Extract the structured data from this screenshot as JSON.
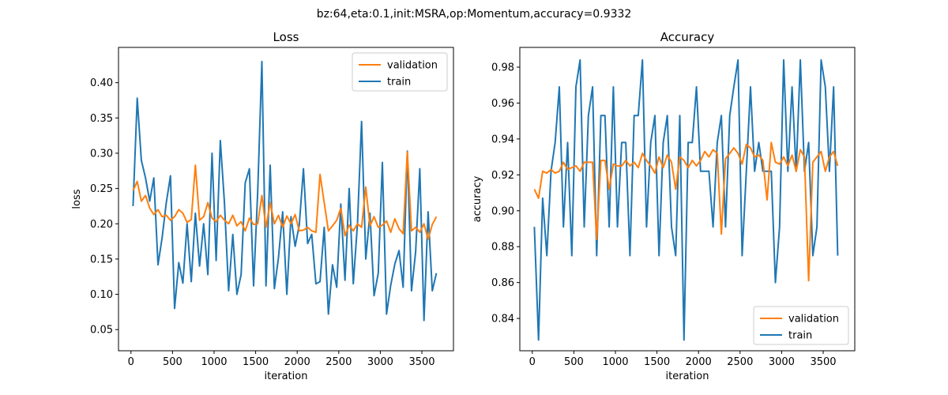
{
  "figure_title": "bz:64,eta:0.1,init:MSRA,op:Momentum,accuracy=0.9332",
  "colors": {
    "train": "#1f77b4",
    "validation": "#ff7f0e",
    "axis": "#000000"
  },
  "chart_data": [
    {
      "type": "line",
      "title": "Loss",
      "xlabel": "iteration",
      "ylabel": "loss",
      "xlim": [
        -150,
        3880
      ],
      "ylim": [
        0.02,
        0.45
      ],
      "xticks": [
        0,
        500,
        1000,
        1500,
        2000,
        2500,
        3000,
        3500
      ],
      "yticks": [
        0.05,
        0.1,
        0.15,
        0.2,
        0.25,
        0.3,
        0.35,
        0.4
      ],
      "ytick_labels": [
        "0.05",
        "0.10",
        "0.15",
        "0.20",
        "0.25",
        "0.30",
        "0.35",
        "0.40"
      ],
      "legend_position": "top-right",
      "x": [
        25,
        75,
        125,
        175,
        225,
        275,
        325,
        375,
        425,
        475,
        525,
        575,
        625,
        675,
        725,
        775,
        825,
        875,
        925,
        975,
        1025,
        1075,
        1125,
        1175,
        1225,
        1275,
        1325,
        1375,
        1425,
        1475,
        1525,
        1575,
        1625,
        1675,
        1725,
        1775,
        1825,
        1875,
        1925,
        1975,
        2025,
        2075,
        2125,
        2175,
        2225,
        2275,
        2325,
        2375,
        2425,
        2475,
        2525,
        2575,
        2625,
        2675,
        2725,
        2775,
        2825,
        2875,
        2925,
        2975,
        3025,
        3075,
        3125,
        3175,
        3225,
        3275,
        3325,
        3375,
        3425,
        3475,
        3525,
        3575,
        3625,
        3675
      ],
      "series": [
        {
          "name": "validation",
          "values": [
            0.247,
            0.26,
            0.232,
            0.24,
            0.222,
            0.213,
            0.22,
            0.21,
            0.212,
            0.205,
            0.21,
            0.22,
            0.215,
            0.202,
            0.206,
            0.283,
            0.205,
            0.21,
            0.23,
            0.208,
            0.203,
            0.212,
            0.205,
            0.2,
            0.212,
            0.197,
            0.203,
            0.19,
            0.208,
            0.199,
            0.2,
            0.24,
            0.195,
            0.23,
            0.2,
            0.212,
            0.195,
            0.211,
            0.2,
            0.213,
            0.19,
            0.191,
            0.195,
            0.19,
            0.188,
            0.27,
            0.23,
            0.19,
            0.197,
            0.205,
            0.222,
            0.183,
            0.198,
            0.19,
            0.2,
            0.195,
            0.252,
            0.197,
            0.21,
            0.195,
            0.198,
            0.204,
            0.188,
            0.207,
            0.193,
            0.186,
            0.302,
            0.19,
            0.195,
            0.188,
            0.2,
            0.178,
            0.199,
            0.21
          ]
        },
        {
          "name": "train",
          "values": [
            0.225,
            0.378,
            0.29,
            0.265,
            0.232,
            0.265,
            0.142,
            0.18,
            0.23,
            0.268,
            0.08,
            0.145,
            0.116,
            0.2,
            0.118,
            0.215,
            0.14,
            0.2,
            0.128,
            0.3,
            0.148,
            0.318,
            0.23,
            0.105,
            0.185,
            0.1,
            0.128,
            0.258,
            0.278,
            0.112,
            0.245,
            0.43,
            0.112,
            0.283,
            0.108,
            0.152,
            0.217,
            0.1,
            0.21,
            0.168,
            0.198,
            0.278,
            0.172,
            0.185,
            0.115,
            0.118,
            0.195,
            0.072,
            0.142,
            0.11,
            0.228,
            0.12,
            0.25,
            0.115,
            0.2,
            0.345,
            0.15,
            0.215,
            0.098,
            0.13,
            0.287,
            0.072,
            0.113,
            0.143,
            0.162,
            0.11,
            0.303,
            0.105,
            0.16,
            0.278,
            0.063,
            0.217,
            0.105,
            0.13
          ]
        }
      ]
    },
    {
      "type": "line",
      "title": "Accuracy",
      "xlabel": "iteration",
      "ylabel": "accuracy",
      "xlim": [
        -150,
        3880
      ],
      "ylim": [
        0.822,
        0.991
      ],
      "xticks": [
        0,
        500,
        1000,
        1500,
        2000,
        2500,
        3000,
        3500
      ],
      "yticks": [
        0.84,
        0.86,
        0.88,
        0.9,
        0.92,
        0.94,
        0.96,
        0.98
      ],
      "ytick_labels": [
        "0.84",
        "0.86",
        "0.88",
        "0.90",
        "0.92",
        "0.94",
        "0.96",
        "0.98"
      ],
      "legend_position": "bottom-right",
      "x": [
        25,
        75,
        125,
        175,
        225,
        275,
        325,
        375,
        425,
        475,
        525,
        575,
        625,
        675,
        725,
        775,
        825,
        875,
        925,
        975,
        1025,
        1075,
        1125,
        1175,
        1225,
        1275,
        1325,
        1375,
        1425,
        1475,
        1525,
        1575,
        1625,
        1675,
        1725,
        1775,
        1825,
        1875,
        1925,
        1975,
        2025,
        2075,
        2125,
        2175,
        2225,
        2275,
        2325,
        2375,
        2425,
        2475,
        2525,
        2575,
        2625,
        2675,
        2725,
        2775,
        2825,
        2875,
        2925,
        2975,
        3025,
        3075,
        3125,
        3175,
        3225,
        3275,
        3325,
        3375,
        3425,
        3475,
        3525,
        3575,
        3625,
        3675
      ],
      "series": [
        {
          "name": "validation",
          "values": [
            0.912,
            0.907,
            0.922,
            0.921,
            0.923,
            0.921,
            0.922,
            0.927,
            0.923,
            0.924,
            0.925,
            0.922,
            0.927,
            0.927,
            0.927,
            0.884,
            0.928,
            0.928,
            0.912,
            0.926,
            0.925,
            0.925,
            0.928,
            0.925,
            0.927,
            0.924,
            0.932,
            0.928,
            0.925,
            0.921,
            0.93,
            0.924,
            0.931,
            0.927,
            0.912,
            0.93,
            0.928,
            0.924,
            0.928,
            0.925,
            0.928,
            0.933,
            0.93,
            0.934,
            0.932,
            0.887,
            0.929,
            0.932,
            0.935,
            0.932,
            0.926,
            0.937,
            0.935,
            0.93,
            0.931,
            0.928,
            0.906,
            0.938,
            0.927,
            0.926,
            0.93,
            0.925,
            0.931,
            0.922,
            0.934,
            0.93,
            0.861,
            0.927,
            0.93,
            0.933,
            0.922,
            0.93,
            0.933,
            0.925
          ]
        },
        {
          "name": "train",
          "values": [
            0.891,
            0.828,
            0.907,
            0.875,
            0.922,
            0.938,
            0.969,
            0.891,
            0.938,
            0.875,
            0.969,
            0.984,
            0.891,
            0.953,
            0.969,
            0.875,
            0.953,
            0.953,
            0.891,
            0.969,
            0.891,
            0.938,
            0.938,
            0.875,
            0.953,
            0.953,
            0.984,
            0.891,
            0.938,
            0.953,
            0.875,
            0.938,
            0.953,
            0.891,
            0.875,
            0.953,
            0.828,
            0.938,
            0.938,
            0.969,
            0.922,
            0.922,
            0.922,
            0.891,
            0.938,
            0.953,
            0.891,
            0.953,
            0.969,
            0.984,
            0.875,
            0.922,
            0.969,
            0.922,
            0.938,
            0.922,
            0.922,
            0.922,
            0.86,
            0.891,
            0.984,
            0.922,
            0.969,
            0.922,
            0.984,
            0.922,
            0.938,
            0.875,
            0.891,
            0.984,
            0.969,
            0.922,
            0.969,
            0.875
          ]
        }
      ]
    }
  ]
}
